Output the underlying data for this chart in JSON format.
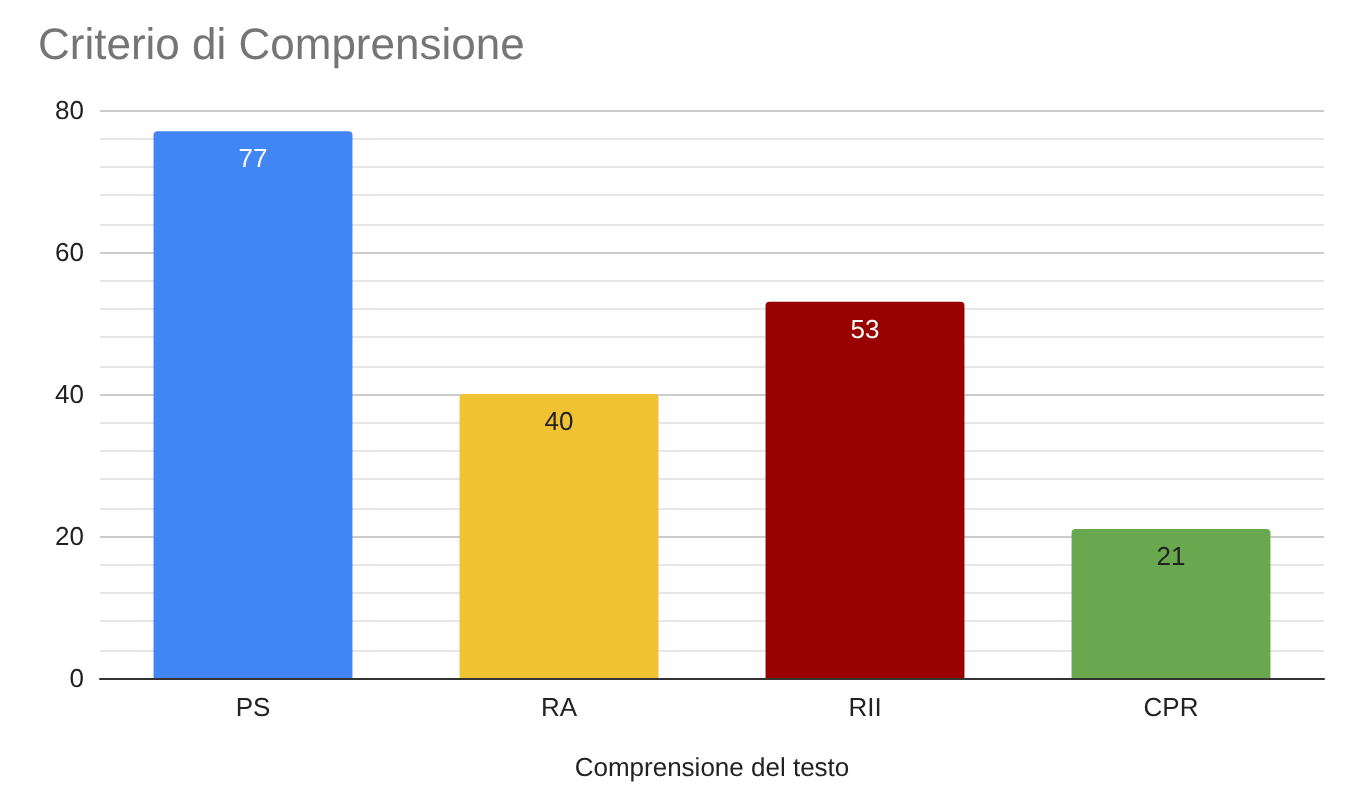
{
  "chart_data": {
    "type": "bar",
    "title": "Criterio di Comprensione",
    "xlabel": "Comprensione del testo",
    "categories": [
      "PS",
      "RA",
      "RII",
      "CPR"
    ],
    "values": [
      77,
      40,
      53,
      21
    ],
    "colors": [
      "#4285f4",
      "#f1c232",
      "#990000",
      "#6aa84f"
    ],
    "ylim": [
      0,
      80
    ],
    "yticks": [
      0,
      20,
      40,
      60,
      80
    ],
    "grid": true,
    "data_labels": true
  }
}
